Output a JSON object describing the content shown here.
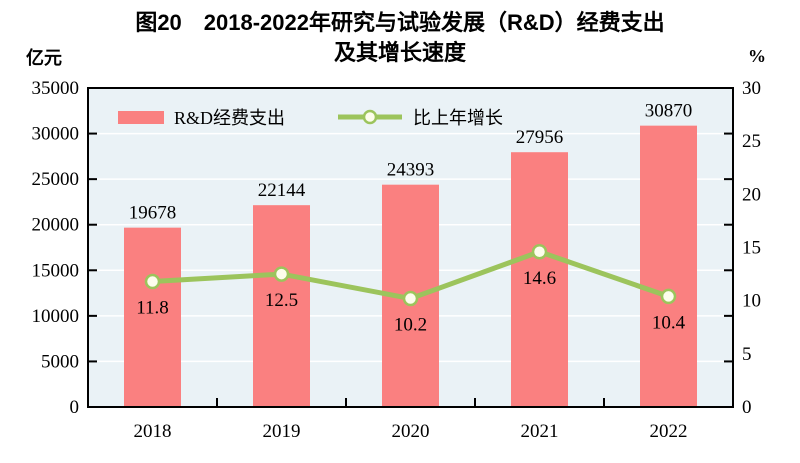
{
  "title": {
    "line1": "图20　2018-2022年研究与试验发展（R&D）经费支出",
    "line2": "及其增长速度"
  },
  "axes": {
    "left_unit": "亿元",
    "right_unit": "%"
  },
  "chart_data": {
    "type": "bar",
    "title": "图20 2018-2022年研究与试验发展（R&D）经费支出及其增长速度",
    "categories": [
      "2018",
      "2019",
      "2020",
      "2021",
      "2022"
    ],
    "series": [
      {
        "name": "R&D经费支出",
        "type": "bar",
        "axis": "left",
        "color": "#FA8080",
        "values": [
          19678,
          22144,
          24393,
          27956,
          30870
        ],
        "labels": [
          "19678",
          "22144",
          "24393",
          "27956",
          "30870"
        ]
      },
      {
        "name": "比上年增长",
        "type": "line",
        "axis": "right",
        "color": "#9CC45C",
        "marker_fill": "#FDFDEC",
        "values": [
          11.8,
          12.5,
          10.2,
          14.6,
          10.4
        ],
        "labels": [
          "11.8",
          "12.5",
          "10.2",
          "14.6",
          "10.4"
        ]
      }
    ],
    "left_axis": {
      "label": "亿元",
      "min": 0,
      "max": 35000,
      "step": 5000,
      "ticks": [
        "0",
        "5000",
        "10000",
        "15000",
        "20000",
        "25000",
        "30000",
        "35000"
      ]
    },
    "right_axis": {
      "label": "%",
      "min": 0,
      "max": 30,
      "step": 5,
      "ticks": [
        "0",
        "5",
        "10",
        "15",
        "20",
        "25",
        "30"
      ]
    },
    "grid": true,
    "legend_position": "top-inside",
    "plot_bg": "#EAF2F6",
    "grid_color": "#FFFFFF",
    "border_color": "#000000"
  }
}
